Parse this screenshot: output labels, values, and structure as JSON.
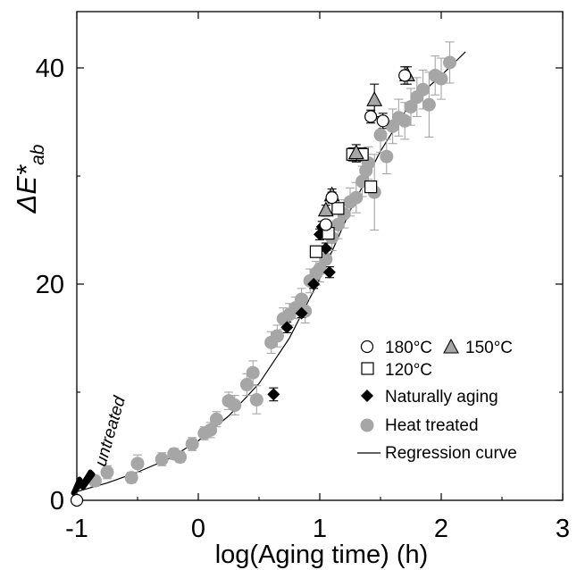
{
  "chart_data": {
    "type": "scatter",
    "xlabel": "log(Aging time) (h)",
    "ylabel": "ΔE*ab",
    "ylabel_main": "ΔE*",
    "ylabel_sub": "ab",
    "xlim": [
      -1,
      3
    ],
    "ylim": [
      0,
      45
    ],
    "xticks": [
      -1,
      0,
      1,
      2,
      3
    ],
    "xtick_labels": [
      "-1",
      "0",
      "1",
      "2",
      "3"
    ],
    "yticks": [
      0,
      20,
      40
    ],
    "ytick_labels": [
      "0",
      "20",
      "40"
    ],
    "grid": false,
    "legend_position": "bottom-right",
    "annotation": {
      "text": "untreated",
      "x": -1,
      "y": 0
    },
    "series": [
      {
        "name": "180°C",
        "marker": "circle-open",
        "points": [
          [
            -1.0,
            0.0
          ],
          [
            1.05,
            25.5
          ],
          [
            1.1,
            28.0
          ],
          [
            1.42,
            35.5
          ],
          [
            1.52,
            35.1
          ],
          [
            1.7,
            39.3
          ]
        ],
        "errors": [
          0,
          0.4,
          0.5,
          0.6,
          0.7,
          0.8
        ]
      },
      {
        "name": "150°C",
        "marker": "triangle-gray",
        "points": [
          [
            1.05,
            26.8
          ],
          [
            1.1,
            28.2
          ],
          [
            1.3,
            32.1
          ],
          [
            1.45,
            37.0
          ],
          [
            1.72,
            39.3
          ]
        ],
        "errors": [
          0.5,
          0.6,
          0.8,
          1.5,
          0.8
        ]
      },
      {
        "name": "120°C",
        "marker": "square-open",
        "points": [
          [
            0.97,
            23.0
          ],
          [
            1.07,
            24.7
          ],
          [
            1.15,
            27.0
          ],
          [
            1.27,
            32.0
          ],
          [
            1.35,
            32.0
          ],
          [
            1.42,
            29.0
          ]
        ],
        "errors": [
          0.4,
          0.5,
          0.5,
          0.6,
          0.6,
          0.5
        ]
      },
      {
        "name": "Naturally aging",
        "marker": "diamond-black",
        "points": [
          [
            0.62,
            9.8
          ],
          [
            0.73,
            16.0
          ],
          [
            0.85,
            17.3
          ],
          [
            0.95,
            20.0
          ],
          [
            1.0,
            24.6
          ],
          [
            1.02,
            25.3
          ],
          [
            1.05,
            23.3
          ],
          [
            1.08,
            21.1
          ]
        ],
        "errors": [
          0.6,
          0.5,
          0.4,
          0.4,
          0.5,
          0.5,
          0.5,
          0.5
        ]
      },
      {
        "name": "Heat treated",
        "marker": "circle-gray",
        "points": [
          [
            -0.85,
            1.8
          ],
          [
            -0.75,
            2.6
          ],
          [
            -0.55,
            2.1
          ],
          [
            -0.5,
            3.4
          ],
          [
            -0.3,
            3.8
          ],
          [
            -0.2,
            4.3
          ],
          [
            -0.15,
            4.0
          ],
          [
            -0.05,
            5.2
          ],
          [
            0.05,
            6.2
          ],
          [
            0.1,
            6.5
          ],
          [
            0.15,
            7.5
          ],
          [
            0.25,
            9.2
          ],
          [
            0.3,
            8.8
          ],
          [
            0.4,
            10.7
          ],
          [
            0.45,
            11.8
          ],
          [
            0.48,
            9.3
          ],
          [
            0.6,
            14.6
          ],
          [
            0.65,
            15.2
          ],
          [
            0.7,
            16.8
          ],
          [
            0.75,
            17.2
          ],
          [
            0.8,
            17.8
          ],
          [
            0.85,
            18.6
          ],
          [
            0.88,
            17.5
          ],
          [
            0.92,
            20.3
          ],
          [
            0.97,
            21.0
          ],
          [
            1.0,
            21.4
          ],
          [
            1.05,
            22.3
          ],
          [
            1.1,
            24.3
          ],
          [
            1.15,
            25.5
          ],
          [
            1.2,
            26.5
          ],
          [
            1.25,
            27.6
          ],
          [
            1.3,
            28.0
          ],
          [
            1.35,
            29.5
          ],
          [
            1.38,
            30.5
          ],
          [
            1.4,
            31.2
          ],
          [
            1.45,
            28.5
          ],
          [
            1.5,
            33.8
          ],
          [
            1.55,
            31.8
          ],
          [
            1.6,
            34.6
          ],
          [
            1.65,
            35.4
          ],
          [
            1.7,
            35.1
          ],
          [
            1.75,
            36.4
          ],
          [
            1.8,
            37.3
          ],
          [
            1.85,
            38.0
          ],
          [
            1.9,
            36.6
          ],
          [
            1.95,
            39.3
          ],
          [
            2.0,
            39.0
          ],
          [
            2.07,
            40.5
          ]
        ],
        "errors": [
          0.5,
          0.6,
          0.5,
          0.8,
          0.6,
          0.5,
          0.5,
          0.6,
          0.6,
          0.7,
          0.7,
          0.8,
          0.9,
          1.0,
          1.1,
          1.3,
          1.0,
          1.0,
          1.0,
          1.0,
          1.0,
          1.0,
          1.1,
          1.1,
          1.1,
          1.2,
          1.2,
          1.2,
          1.3,
          1.3,
          1.3,
          1.4,
          1.4,
          1.5,
          1.5,
          3.5,
          1.6,
          1.6,
          1.6,
          1.7,
          1.7,
          1.7,
          1.8,
          1.8,
          3.0,
          1.8,
          1.9,
          1.9
        ]
      },
      {
        "name": "Regression curve",
        "marker": "line",
        "points": [
          [
            -1.0,
            0.8
          ],
          [
            -0.75,
            1.6
          ],
          [
            -0.5,
            2.6
          ],
          [
            -0.25,
            3.8
          ],
          [
            0.0,
            5.5
          ],
          [
            0.25,
            7.8
          ],
          [
            0.5,
            10.8
          ],
          [
            0.75,
            15.0
          ],
          [
            1.0,
            20.5
          ],
          [
            1.25,
            26.8
          ],
          [
            1.5,
            32.3
          ],
          [
            1.75,
            36.8
          ],
          [
            2.0,
            39.3
          ],
          [
            2.2,
            41.5
          ]
        ]
      }
    ],
    "legend": {
      "row1": [
        "180°C",
        "150°C"
      ],
      "row2": [
        "120°C"
      ],
      "row3": [
        "Naturally aging"
      ],
      "row4": [
        "Heat treated"
      ],
      "row5": [
        "Regression curve"
      ]
    }
  }
}
